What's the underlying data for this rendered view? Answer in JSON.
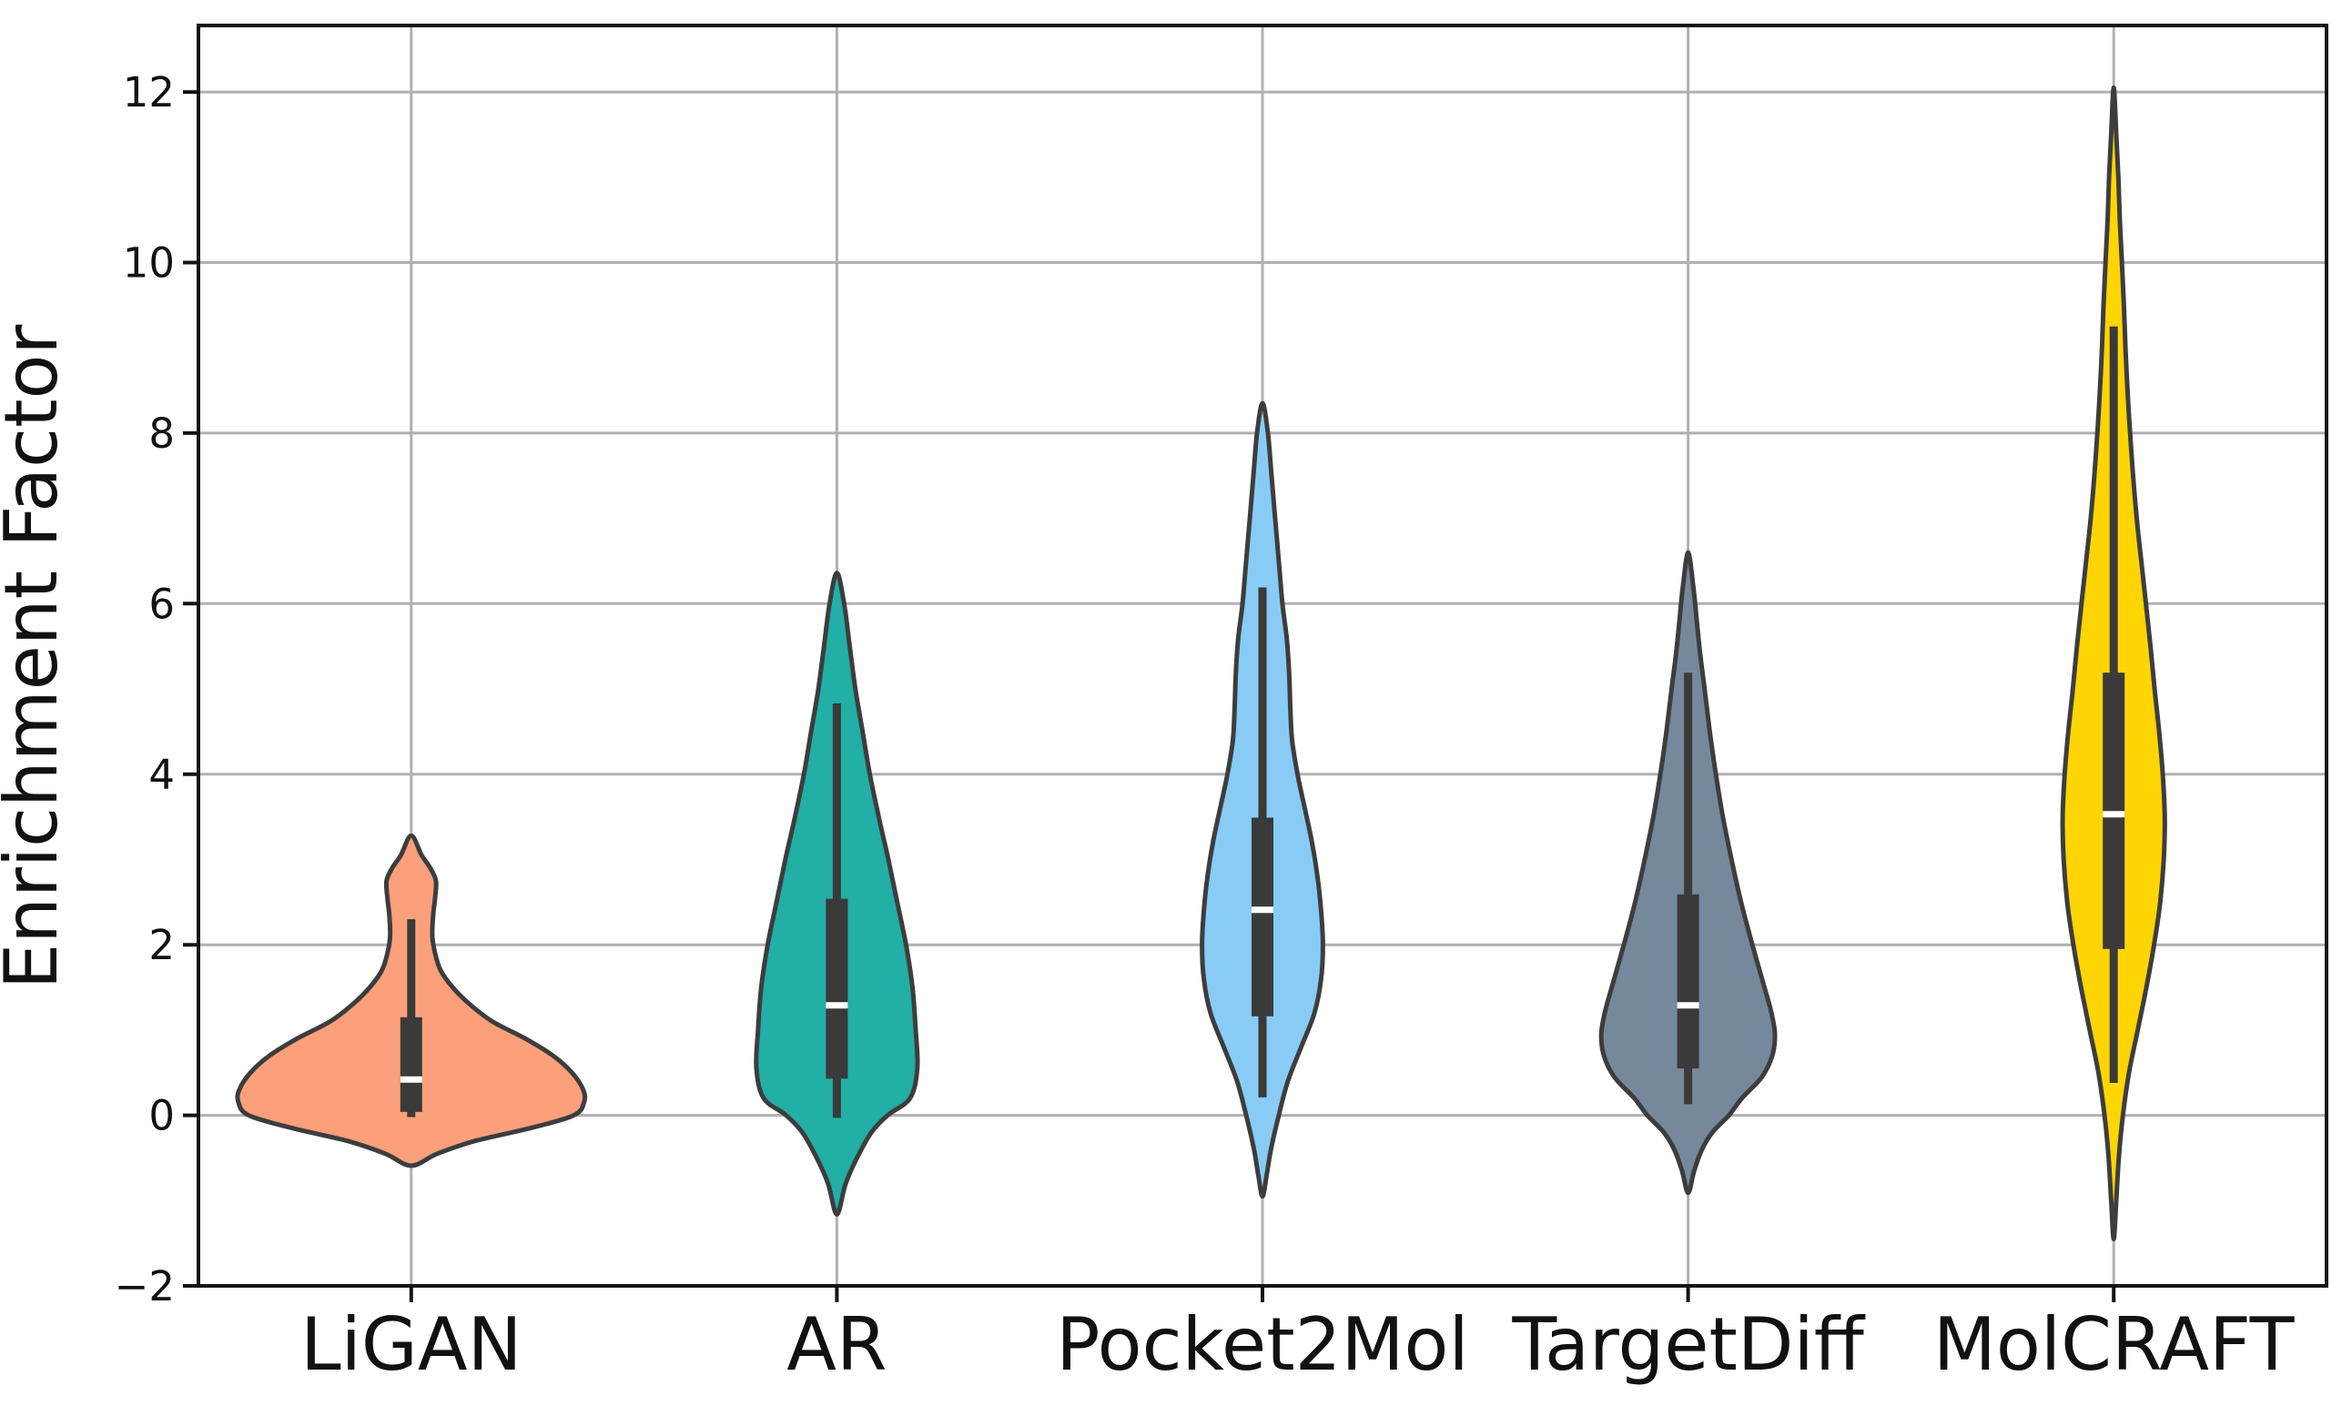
{
  "chart_data": {
    "type": "violin",
    "title": "",
    "xlabel": "",
    "ylabel": "Enrichment Factor",
    "yticks": [
      -2,
      0,
      2,
      4,
      6,
      8,
      10,
      12
    ],
    "ylim": [
      -2.0,
      12.78
    ],
    "grid": true,
    "legend": "none",
    "categories": [
      "LiGAN",
      "AR",
      "Pocket2Mol",
      "TargetDiff",
      "MolCRAFT"
    ],
    "palette": {
      "violin_edge": "#3D3D3D",
      "box_fill": "#3A3A3A",
      "median_line": "#FFFFFF",
      "gridline": "#B0B0B0",
      "spine": "#141414",
      "text": "#111111",
      "background": "#FFFFFF"
    },
    "series": [
      {
        "name": "LiGAN",
        "fill": "#FBA07B",
        "max_halfwidth_frac": 0.406,
        "stats": {
          "min": -0.59,
          "whisker_low": -0.02,
          "q1": 0.04,
          "median": 0.42,
          "q3": 1.15,
          "whisker_high": 2.3,
          "max": 3.28
        },
        "profile": [
          [
            3.28,
            0.0
          ],
          [
            3.05,
            0.06
          ],
          [
            2.9,
            0.11
          ],
          [
            2.75,
            0.143
          ],
          [
            2.55,
            0.138
          ],
          [
            2.35,
            0.127
          ],
          [
            2.1,
            0.122
          ],
          [
            1.9,
            0.138
          ],
          [
            1.7,
            0.17
          ],
          [
            1.5,
            0.24
          ],
          [
            1.3,
            0.34
          ],
          [
            1.1,
            0.47
          ],
          [
            0.9,
            0.66
          ],
          [
            0.7,
            0.82
          ],
          [
            0.5,
            0.93
          ],
          [
            0.3,
            0.995
          ],
          [
            0.15,
            1.0
          ],
          [
            0.0,
            0.94
          ],
          [
            -0.15,
            0.69
          ],
          [
            -0.3,
            0.37
          ],
          [
            -0.45,
            0.15
          ],
          [
            -0.59,
            0.0
          ]
        ]
      },
      {
        "name": "AR",
        "fill": "#21AFA6",
        "max_halfwidth_frac": 0.189,
        "stats": {
          "min": -1.16,
          "whisker_low": -0.03,
          "q1": 0.43,
          "median": 1.29,
          "q3": 2.54,
          "whisker_high": 4.83,
          "max": 6.36
        },
        "profile": [
          [
            6.36,
            0.0
          ],
          [
            6.0,
            0.09
          ],
          [
            5.5,
            0.16
          ],
          [
            5.0,
            0.23
          ],
          [
            4.5,
            0.32
          ],
          [
            4.0,
            0.41
          ],
          [
            3.5,
            0.52
          ],
          [
            3.0,
            0.64
          ],
          [
            2.5,
            0.75
          ],
          [
            2.0,
            0.86
          ],
          [
            1.5,
            0.94
          ],
          [
            1.0,
            0.98
          ],
          [
            0.55,
            1.0
          ],
          [
            0.2,
            0.91
          ],
          [
            0.0,
            0.63
          ],
          [
            -0.2,
            0.43
          ],
          [
            -0.5,
            0.25
          ],
          [
            -0.8,
            0.11
          ],
          [
            -1.16,
            0.0
          ]
        ]
      },
      {
        "name": "Pocket2Mol",
        "fill": "#88CCF6",
        "max_halfwidth_frac": 0.142,
        "stats": {
          "min": -0.95,
          "whisker_low": 0.21,
          "q1": 1.16,
          "median": 2.41,
          "q3": 3.49,
          "whisker_high": 6.19,
          "max": 8.35
        },
        "profile": [
          [
            8.35,
            0.0
          ],
          [
            8.0,
            0.09
          ],
          [
            7.5,
            0.15
          ],
          [
            7.0,
            0.21
          ],
          [
            6.5,
            0.27
          ],
          [
            6.0,
            0.33
          ],
          [
            5.6,
            0.4
          ],
          [
            5.2,
            0.44
          ],
          [
            4.8,
            0.46
          ],
          [
            4.4,
            0.49
          ],
          [
            4.0,
            0.58
          ],
          [
            3.6,
            0.7
          ],
          [
            3.2,
            0.82
          ],
          [
            2.8,
            0.91
          ],
          [
            2.4,
            0.97
          ],
          [
            2.0,
            1.0
          ],
          [
            1.6,
            0.97
          ],
          [
            1.2,
            0.86
          ],
          [
            0.8,
            0.64
          ],
          [
            0.4,
            0.42
          ],
          [
            0.0,
            0.27
          ],
          [
            -0.4,
            0.14
          ],
          [
            -0.7,
            0.07
          ],
          [
            -0.95,
            0.0
          ]
        ]
      },
      {
        "name": "TargetDiff",
        "fill": "#76889B",
        "max_halfwidth_frac": 0.204,
        "stats": {
          "min": -0.91,
          "whisker_low": 0.13,
          "q1": 0.55,
          "median": 1.29,
          "q3": 2.59,
          "whisker_high": 5.19,
          "max": 6.6
        },
        "profile": [
          [
            6.6,
            0.0
          ],
          [
            6.2,
            0.06
          ],
          [
            5.8,
            0.1
          ],
          [
            5.4,
            0.14
          ],
          [
            5.0,
            0.19
          ],
          [
            4.5,
            0.25
          ],
          [
            4.0,
            0.32
          ],
          [
            3.5,
            0.4
          ],
          [
            3.0,
            0.5
          ],
          [
            2.5,
            0.61
          ],
          [
            2.0,
            0.74
          ],
          [
            1.5,
            0.88
          ],
          [
            1.2,
            0.96
          ],
          [
            0.95,
            1.0
          ],
          [
            0.7,
            0.97
          ],
          [
            0.45,
            0.85
          ],
          [
            0.2,
            0.62
          ],
          [
            0.0,
            0.47
          ],
          [
            -0.2,
            0.28
          ],
          [
            -0.4,
            0.16
          ],
          [
            -0.65,
            0.07
          ],
          [
            -0.91,
            0.0
          ]
        ]
      },
      {
        "name": "MolCRAFT",
        "fill": "#FFD504",
        "max_halfwidth_frac": 0.12,
        "stats": {
          "min": -1.45,
          "whisker_low": 0.38,
          "q1": 1.95,
          "median": 3.53,
          "q3": 5.19,
          "whisker_high": 9.25,
          "max": 12.05
        },
        "profile": [
          [
            12.05,
            0.0
          ],
          [
            11.5,
            0.05
          ],
          [
            11.0,
            0.09
          ],
          [
            10.5,
            0.12
          ],
          [
            10.0,
            0.16
          ],
          [
            9.5,
            0.2
          ],
          [
            9.0,
            0.23
          ],
          [
            8.5,
            0.27
          ],
          [
            8.0,
            0.32
          ],
          [
            7.5,
            0.38
          ],
          [
            7.0,
            0.45
          ],
          [
            6.5,
            0.54
          ],
          [
            6.0,
            0.63
          ],
          [
            5.5,
            0.72
          ],
          [
            5.0,
            0.8
          ],
          [
            4.5,
            0.89
          ],
          [
            4.0,
            0.96
          ],
          [
            3.5,
            1.0
          ],
          [
            3.0,
            0.98
          ],
          [
            2.5,
            0.91
          ],
          [
            2.0,
            0.79
          ],
          [
            1.5,
            0.64
          ],
          [
            1.0,
            0.47
          ],
          [
            0.5,
            0.3
          ],
          [
            0.0,
            0.18
          ],
          [
            -0.5,
            0.1
          ],
          [
            -1.0,
            0.05
          ],
          [
            -1.45,
            0.0
          ]
        ]
      }
    ]
  }
}
